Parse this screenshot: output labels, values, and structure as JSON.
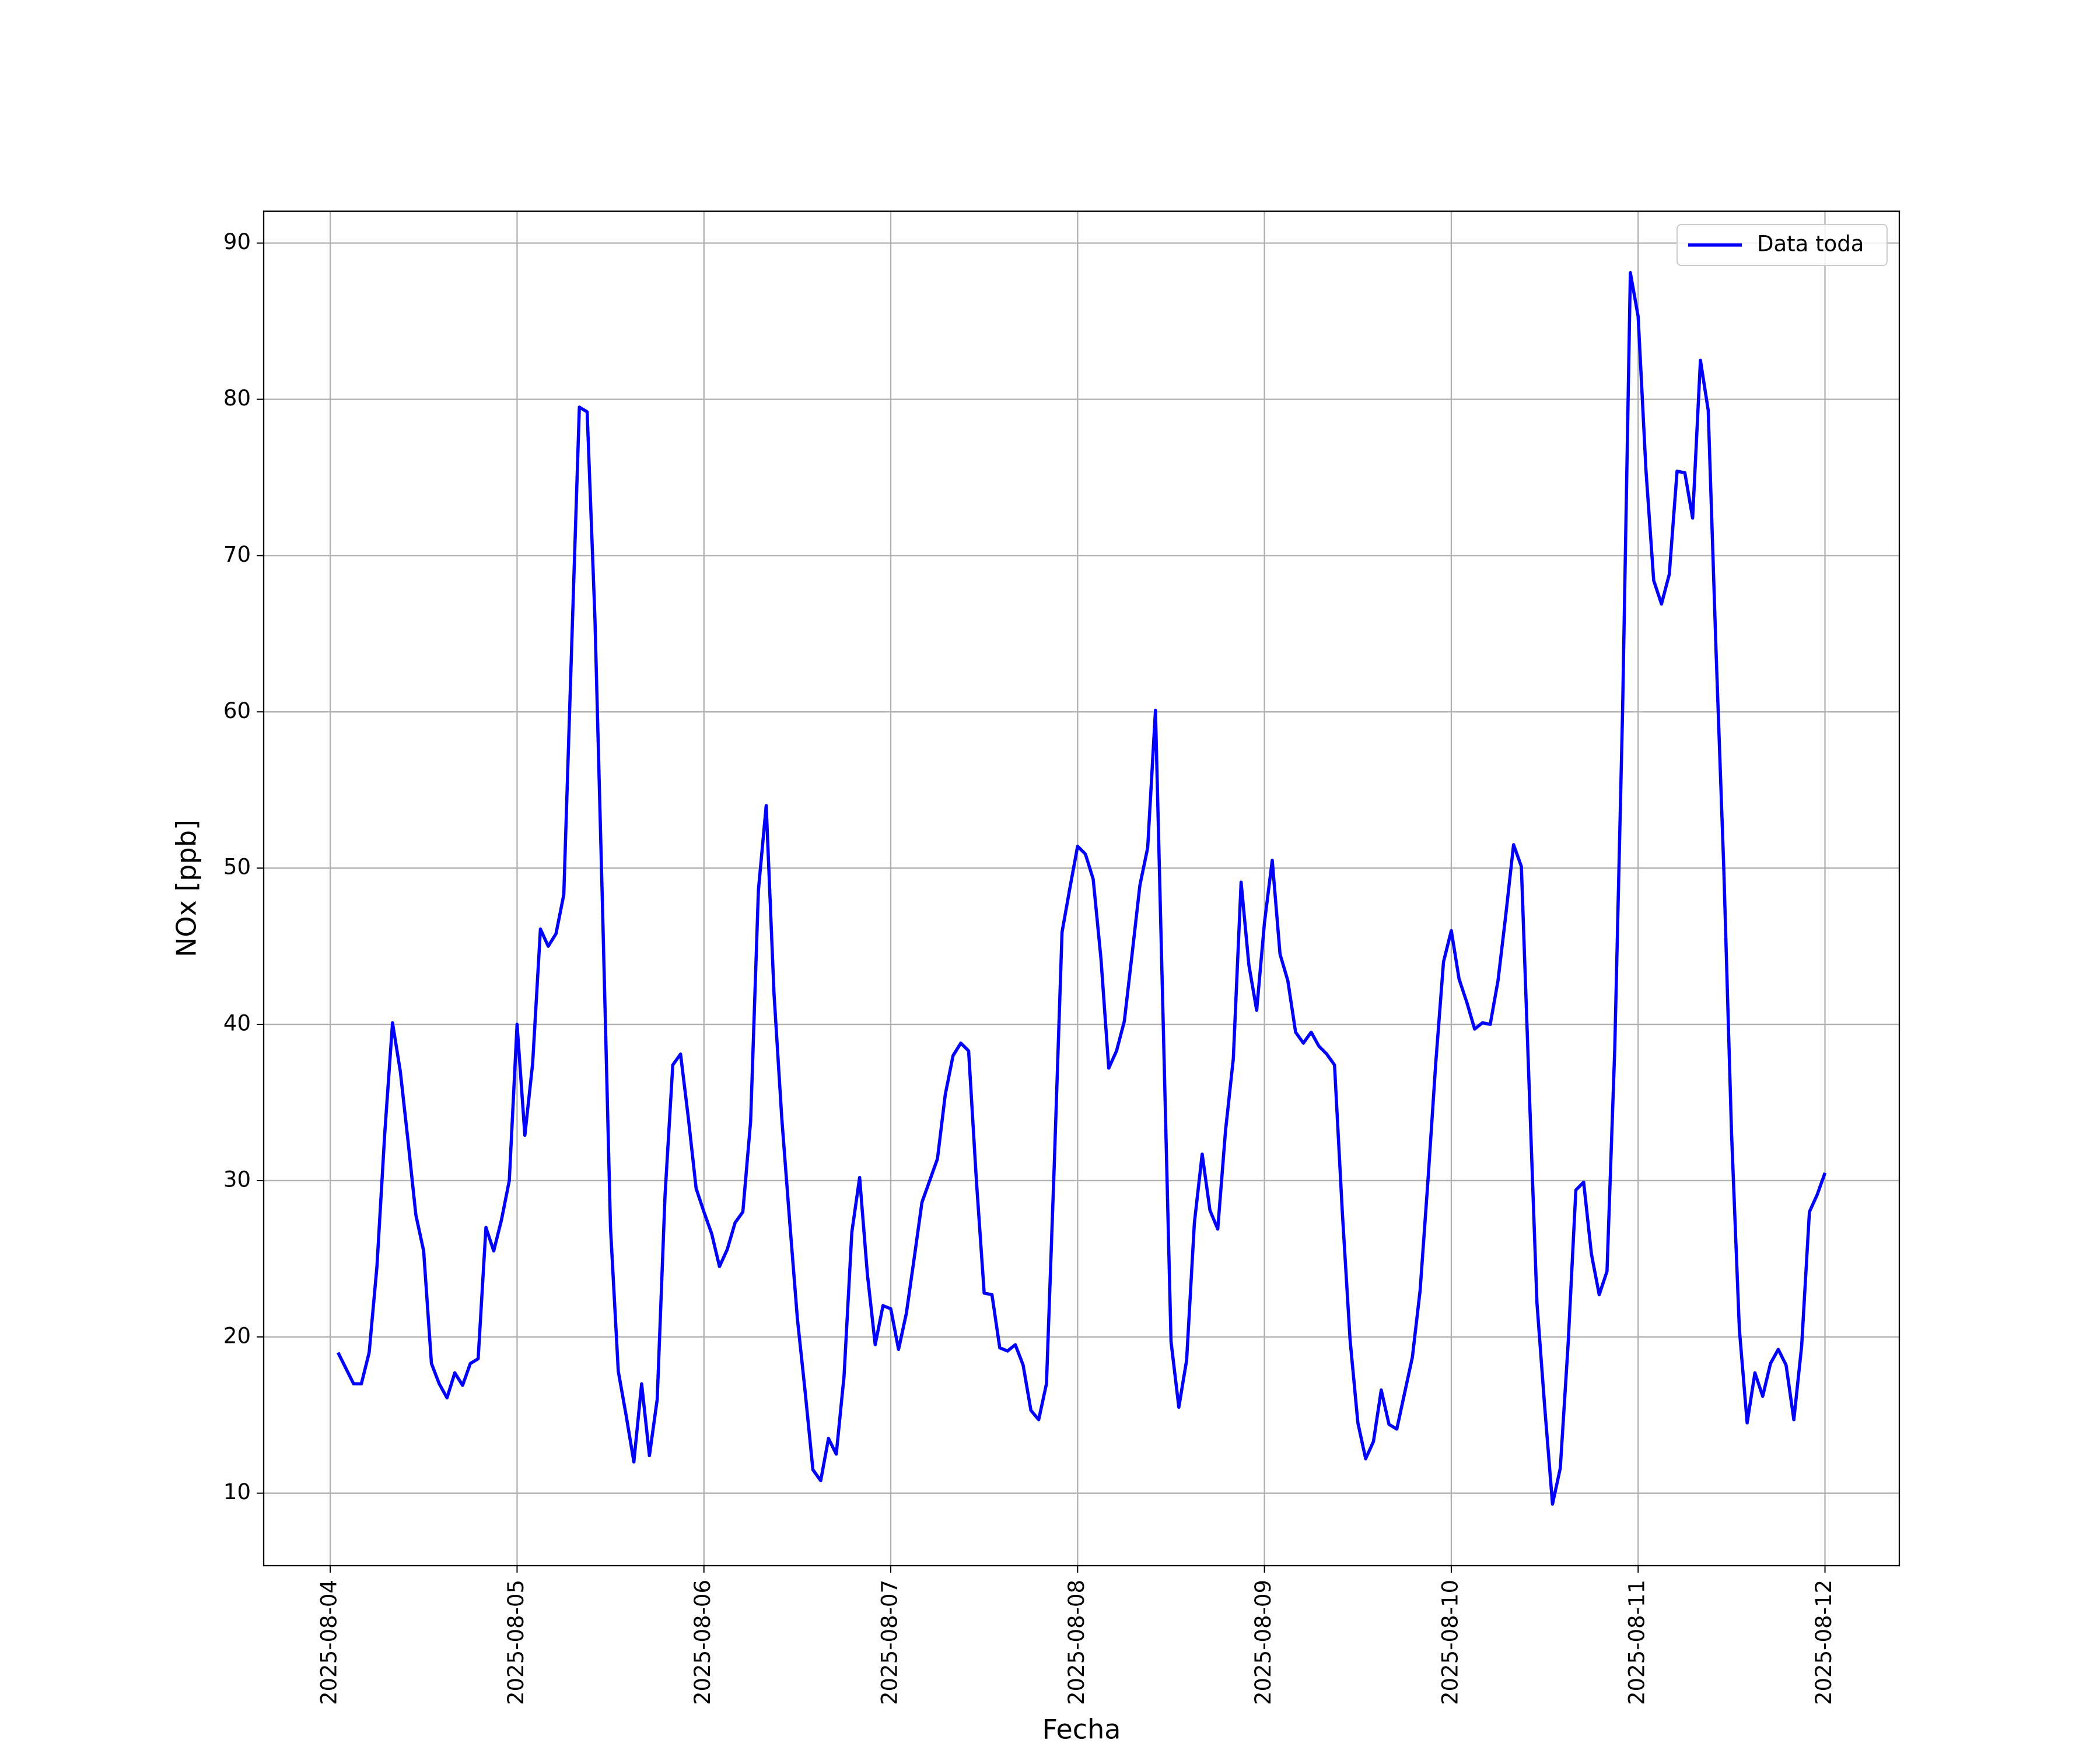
{
  "chart_data": {
    "type": "line",
    "xlabel": "Fecha",
    "ylabel": "NOx [ppb]",
    "x": [
      "2025-08-04 01:00",
      "2025-08-04 02:00",
      "2025-08-04 03:00",
      "2025-08-04 04:00",
      "2025-08-04 05:00",
      "2025-08-04 06:00",
      "2025-08-04 07:00",
      "2025-08-04 08:00",
      "2025-08-04 09:00",
      "2025-08-04 10:00",
      "2025-08-04 11:00",
      "2025-08-04 12:00",
      "2025-08-04 13:00",
      "2025-08-04 14:00",
      "2025-08-04 15:00",
      "2025-08-04 16:00",
      "2025-08-04 17:00",
      "2025-08-04 18:00",
      "2025-08-04 19:00",
      "2025-08-04 20:00",
      "2025-08-04 21:00",
      "2025-08-04 22:00",
      "2025-08-04 23:00",
      "2025-08-05 00:00",
      "2025-08-05 01:00",
      "2025-08-05 02:00",
      "2025-08-05 03:00",
      "2025-08-05 04:00",
      "2025-08-05 05:00",
      "2025-08-05 06:00",
      "2025-08-05 07:00",
      "2025-08-05 08:00",
      "2025-08-05 09:00",
      "2025-08-05 10:00",
      "2025-08-05 11:00",
      "2025-08-05 12:00",
      "2025-08-05 13:00",
      "2025-08-05 14:00",
      "2025-08-05 15:00",
      "2025-08-05 16:00",
      "2025-08-05 17:00",
      "2025-08-05 18:00",
      "2025-08-05 19:00",
      "2025-08-05 20:00",
      "2025-08-05 21:00",
      "2025-08-05 22:00",
      "2025-08-05 23:00",
      "2025-08-06 00:00",
      "2025-08-06 01:00",
      "2025-08-06 02:00",
      "2025-08-06 03:00",
      "2025-08-06 04:00",
      "2025-08-06 05:00",
      "2025-08-06 06:00",
      "2025-08-06 07:00",
      "2025-08-06 08:00",
      "2025-08-06 09:00",
      "2025-08-06 10:00",
      "2025-08-06 11:00",
      "2025-08-06 12:00",
      "2025-08-06 13:00",
      "2025-08-06 14:00",
      "2025-08-06 15:00",
      "2025-08-06 16:00",
      "2025-08-06 17:00",
      "2025-08-06 18:00",
      "2025-08-06 19:00",
      "2025-08-06 20:00",
      "2025-08-06 21:00",
      "2025-08-06 22:00",
      "2025-08-06 23:00",
      "2025-08-07 00:00",
      "2025-08-07 01:00",
      "2025-08-07 02:00",
      "2025-08-07 03:00",
      "2025-08-07 04:00",
      "2025-08-07 05:00",
      "2025-08-07 06:00",
      "2025-08-07 07:00",
      "2025-08-07 08:00",
      "2025-08-07 09:00",
      "2025-08-07 10:00",
      "2025-08-07 11:00",
      "2025-08-07 12:00",
      "2025-08-07 13:00",
      "2025-08-07 14:00",
      "2025-08-07 15:00",
      "2025-08-07 16:00",
      "2025-08-07 17:00",
      "2025-08-07 18:00",
      "2025-08-07 19:00",
      "2025-08-07 20:00",
      "2025-08-07 21:00",
      "2025-08-07 22:00",
      "2025-08-07 23:00",
      "2025-08-08 00:00",
      "2025-08-08 01:00",
      "2025-08-08 02:00",
      "2025-08-08 03:00",
      "2025-08-08 04:00",
      "2025-08-08 05:00",
      "2025-08-08 06:00",
      "2025-08-08 07:00",
      "2025-08-08 08:00",
      "2025-08-08 09:00",
      "2025-08-08 10:00",
      "2025-08-08 11:00",
      "2025-08-08 12:00",
      "2025-08-08 13:00",
      "2025-08-08 14:00",
      "2025-08-08 15:00",
      "2025-08-08 16:00",
      "2025-08-08 17:00",
      "2025-08-08 18:00",
      "2025-08-08 19:00",
      "2025-08-08 20:00",
      "2025-08-08 21:00",
      "2025-08-08 22:00",
      "2025-08-08 23:00",
      "2025-08-09 00:00",
      "2025-08-09 01:00",
      "2025-08-09 02:00",
      "2025-08-09 03:00",
      "2025-08-09 04:00",
      "2025-08-09 05:00",
      "2025-08-09 06:00",
      "2025-08-09 07:00",
      "2025-08-09 08:00",
      "2025-08-09 09:00",
      "2025-08-09 10:00",
      "2025-08-09 11:00",
      "2025-08-09 12:00",
      "2025-08-09 13:00",
      "2025-08-09 14:00",
      "2025-08-09 15:00",
      "2025-08-09 16:00",
      "2025-08-09 17:00",
      "2025-08-09 18:00",
      "2025-08-09 19:00",
      "2025-08-09 20:00",
      "2025-08-09 21:00",
      "2025-08-09 22:00",
      "2025-08-09 23:00",
      "2025-08-10 00:00",
      "2025-08-10 01:00",
      "2025-08-10 02:00",
      "2025-08-10 03:00",
      "2025-08-10 04:00",
      "2025-08-10 05:00",
      "2025-08-10 06:00",
      "2025-08-10 07:00",
      "2025-08-10 08:00",
      "2025-08-10 09:00",
      "2025-08-10 10:00",
      "2025-08-10 11:00",
      "2025-08-10 12:00",
      "2025-08-10 13:00",
      "2025-08-10 14:00",
      "2025-08-10 15:00",
      "2025-08-10 16:00",
      "2025-08-10 17:00",
      "2025-08-10 18:00",
      "2025-08-10 19:00",
      "2025-08-10 20:00",
      "2025-08-10 21:00",
      "2025-08-10 22:00",
      "2025-08-10 23:00",
      "2025-08-11 00:00",
      "2025-08-11 01:00",
      "2025-08-11 02:00",
      "2025-08-11 03:00",
      "2025-08-11 04:00",
      "2025-08-11 05:00",
      "2025-08-11 06:00",
      "2025-08-11 07:00",
      "2025-08-11 08:00",
      "2025-08-11 09:00",
      "2025-08-11 10:00",
      "2025-08-11 11:00",
      "2025-08-11 12:00",
      "2025-08-11 13:00",
      "2025-08-11 14:00",
      "2025-08-11 15:00",
      "2025-08-11 16:00",
      "2025-08-11 17:00",
      "2025-08-11 18:00",
      "2025-08-11 19:00",
      "2025-08-11 20:00",
      "2025-08-11 21:00",
      "2025-08-11 22:00",
      "2025-08-11 23:00",
      "2025-08-12 00:00"
    ],
    "series": [
      {
        "name": "Data toda",
        "color": "#0000ff",
        "values": [
          19.0,
          18.0,
          17.0,
          17.0,
          19.0,
          24.5,
          33,
          40.1,
          37,
          32.5,
          27.8,
          25.5,
          18.3,
          17.0,
          16.1,
          17.7,
          16.9,
          18.3,
          18.6,
          27.0,
          25.5,
          27.5,
          30.0,
          40.0,
          32.9,
          37.5,
          46.1,
          45.0,
          45.8,
          48.3,
          64,
          79.5,
          79.2,
          66,
          47,
          27,
          17.8,
          15,
          12.0,
          17.0,
          12.4,
          16.0,
          29,
          37.4,
          38.1,
          34,
          29.5,
          28.0,
          26.6,
          24.5,
          25.6,
          27.3,
          28.0,
          33.8,
          48.6,
          54.0,
          42,
          34,
          27.5,
          21.2,
          16.5,
          11.5,
          10.8,
          13.5,
          12.5,
          17.5,
          26.7,
          30.2,
          24,
          19.5,
          22.0,
          21.8,
          19.2,
          21.5,
          25,
          28.6,
          30,
          31.4,
          35.5,
          38.0,
          38.8,
          38.3,
          30,
          22.8,
          22.7,
          19.3,
          19.1,
          19.5,
          18.2,
          15.3,
          14.7,
          17.0,
          31,
          45.9,
          48.7,
          51.4,
          50.9,
          49.3,
          44.2,
          37.2,
          38.3,
          40.2,
          44.5,
          48.9,
          51.3,
          60.1,
          40,
          19.7,
          15.5,
          18.5,
          27.3,
          31.7,
          28.1,
          26.9,
          33.2,
          37.8,
          49.1,
          43.8,
          40.9,
          46.5,
          50.5,
          44.5,
          42.8,
          39.5,
          38.8,
          39.5,
          38.6,
          38.1,
          37.4,
          28,
          19.8,
          14.5,
          12.2,
          13.3,
          16.6,
          14.4,
          14.1,
          16.4,
          18.7,
          23,
          30,
          37.5,
          44,
          46.0,
          42.9,
          41.4,
          39.7,
          40.1,
          40.0,
          42.8,
          47,
          51.5,
          50.1,
          36,
          22.2,
          15.5,
          9.3,
          11.6,
          19.5,
          29.4,
          29.9,
          25.3,
          22.7,
          24.2,
          38.5,
          60,
          88.1,
          85.3,
          75.5,
          68.4,
          66.9,
          68.8,
          75.4,
          75.3,
          72.4,
          82.5,
          79.3,
          64,
          50,
          33,
          20.5,
          14.5,
          17.7,
          16.2,
          18.3,
          19.2,
          18.2,
          14.7,
          19.4,
          28.0,
          29.1,
          30.5
        ]
      }
    ],
    "xlim": [
      "2025-08-03 15:27",
      "2025-08-12 09:33"
    ],
    "xticks": [
      "2025-08-04",
      "2025-08-05",
      "2025-08-06",
      "2025-08-07",
      "2025-08-08",
      "2025-08-09",
      "2025-08-10",
      "2025-08-11",
      "2025-08-12"
    ],
    "ylim": [
      5.36,
      92.04
    ],
    "yticks": [
      10,
      20,
      30,
      40,
      50,
      60,
      70,
      80,
      90
    ],
    "grid": true,
    "legend": "upper right"
  }
}
